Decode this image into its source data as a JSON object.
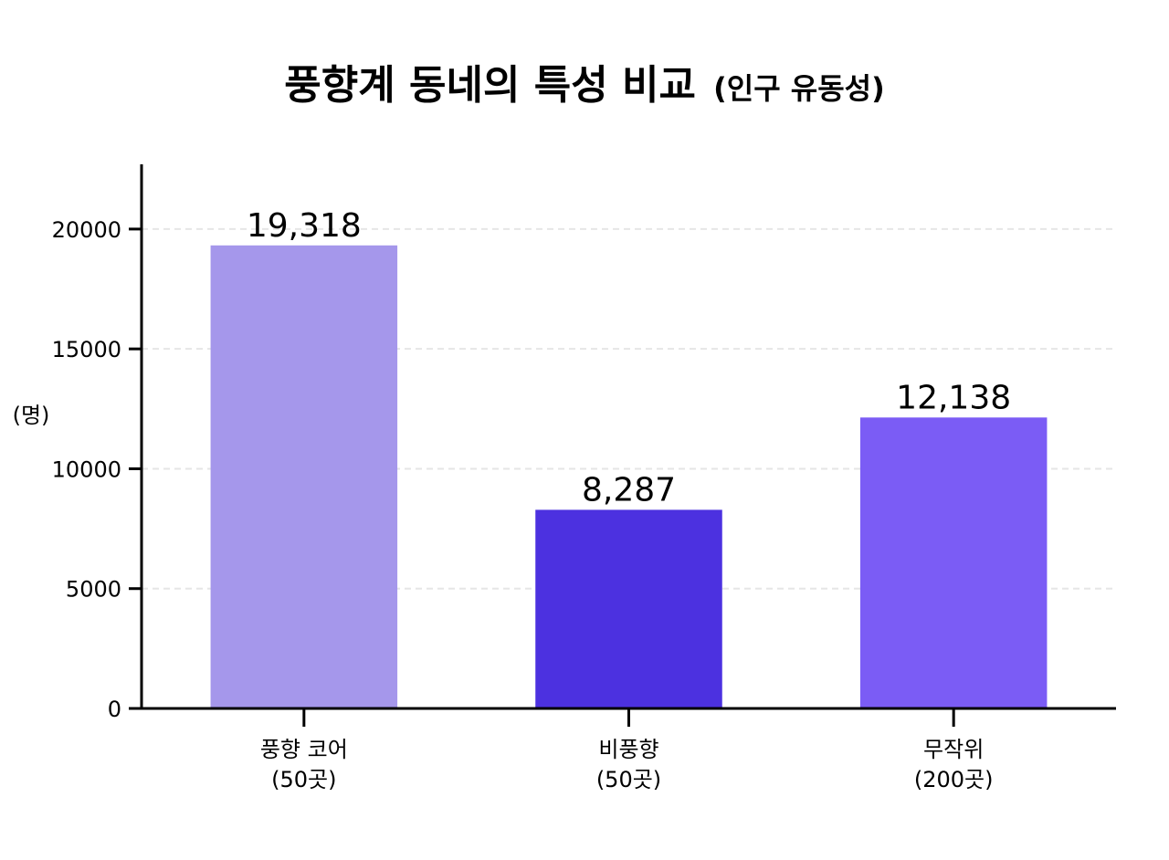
{
  "chart_data": {
    "type": "bar",
    "title": "풍향계 동네의 특성 비교",
    "subtitle": "(인구 유동성)",
    "ylabel": "(명)",
    "xlabel": "",
    "ylim": [
      0,
      22700
    ],
    "yticks": [
      0,
      5000,
      10000,
      15000,
      20000
    ],
    "grid": true,
    "legend": "none",
    "categories": [
      [
        "풍향 코어",
        "(50곳)"
      ],
      [
        "비풍향",
        "(50곳)"
      ],
      [
        "무작위",
        "(200곳)"
      ]
    ],
    "values": [
      19318,
      8287,
      12138
    ],
    "value_labels": [
      "19,318",
      "8,287",
      "12,138"
    ],
    "colors": [
      "#a597eb",
      "#4c31e0",
      "#7b5cf5"
    ]
  }
}
